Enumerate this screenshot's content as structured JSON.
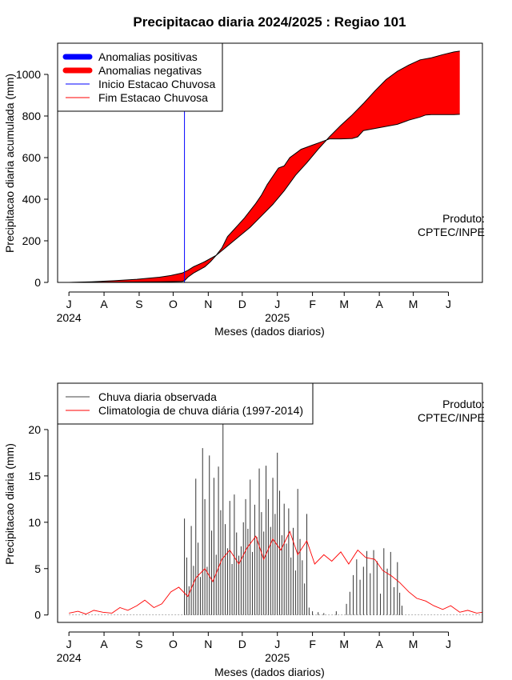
{
  "title": "Precipitacao diaria 2024/2025 : Regiao 101",
  "month_ticks": [
    "J",
    "A",
    "S",
    "O",
    "N",
    "D",
    "J",
    "F",
    "M",
    "A",
    "M",
    "J"
  ],
  "year_labels": [
    "2024",
    "2025"
  ],
  "chart_data": [
    {
      "type": "area",
      "xlabel": "Meses (dados diarios)",
      "ylabel": "Precipitacao diaria acumulada (mm)",
      "ylim": [
        0,
        1150
      ],
      "yticks": [
        0,
        200,
        400,
        600,
        800,
        1000
      ],
      "x_unit": "days since 1 Jul 2024",
      "xlim": [
        -10,
        365
      ],
      "legend_position": "top-left",
      "legend": [
        {
          "label": "Anomalias positivas",
          "color": "#0000ff",
          "style": "thick"
        },
        {
          "label": "Anomalias negativas",
          "color": "#ff0000",
          "style": "thick"
        },
        {
          "label": "Inicio Estacao Chuvosa",
          "color": "#0000ff",
          "style": "thin"
        },
        {
          "label": "Fim Estacao Chuvosa",
          "color": "#ff0000",
          "style": "thin"
        }
      ],
      "annotation": [
        "Produto:",
        "CPTEC/INPE"
      ],
      "onset_day": 102,
      "series": [
        {
          "name": "Climatologia acumulada",
          "x": [
            0,
            20,
            40,
            60,
            80,
            90,
            100,
            105,
            110,
            120,
            130,
            140,
            150,
            160,
            170,
            180,
            190,
            200,
            210,
            220,
            230,
            240,
            250,
            260,
            270,
            280,
            290,
            300,
            310,
            320,
            330,
            340,
            345
          ],
          "y": [
            0,
            3,
            8,
            15,
            25,
            33,
            45,
            58,
            75,
            100,
            130,
            175,
            220,
            265,
            320,
            375,
            440,
            515,
            575,
            640,
            700,
            755,
            805,
            860,
            920,
            975,
            1015,
            1045,
            1070,
            1080,
            1095,
            1108,
            1112
          ]
        },
        {
          "name": "Observado acumulado",
          "x": [
            0,
            20,
            40,
            60,
            80,
            90,
            100,
            102,
            105,
            110,
            115,
            120,
            125,
            130,
            135,
            140,
            145,
            150,
            155,
            160,
            165,
            170,
            175,
            180,
            185,
            190,
            195,
            200,
            205,
            210,
            215,
            220,
            225,
            230,
            240,
            250,
            255,
            260,
            270,
            280,
            290,
            300,
            310,
            315,
            320,
            330,
            340,
            345
          ],
          "y": [
            0,
            0.5,
            1,
            2,
            3,
            4,
            5,
            8,
            25,
            45,
            60,
            75,
            100,
            130,
            165,
            220,
            250,
            280,
            310,
            345,
            380,
            420,
            470,
            510,
            550,
            560,
            600,
            620,
            640,
            650,
            660,
            670,
            680,
            690,
            690,
            692,
            700,
            730,
            740,
            750,
            760,
            780,
            795,
            805,
            807,
            807,
            807,
            808
          ]
        }
      ]
    },
    {
      "type": "bar",
      "xlabel": "Meses (dados diarios)",
      "ylabel": "Precipitacao diaria (mm)",
      "ylim": [
        -0.8,
        25
      ],
      "yticks": [
        0,
        5,
        10,
        15,
        20
      ],
      "x_unit": "days since 1 Jul 2024",
      "xlim": [
        -10,
        365
      ],
      "legend_position": "top-left",
      "legend": [
        {
          "label": "Chuva diaria observada",
          "color": "#444444",
          "style": "thin"
        },
        {
          "label": "Climatologia de chuva diária (1997-2014)",
          "color": "#ff0000",
          "style": "thin"
        }
      ],
      "annotation": [
        "Produto:",
        "CPTEC/INPE"
      ],
      "bars": [
        [
          102,
          10.4
        ],
        [
          104,
          6.2
        ],
        [
          106,
          3.1
        ],
        [
          108,
          9.6
        ],
        [
          110,
          5.3
        ],
        [
          112,
          14.7
        ],
        [
          114,
          7.8
        ],
        [
          116,
          4.1
        ],
        [
          118,
          18.0
        ],
        [
          120,
          12.5
        ],
        [
          122,
          5.2
        ],
        [
          124,
          17.2
        ],
        [
          126,
          9.1
        ],
        [
          128,
          14.8
        ],
        [
          130,
          6.5
        ],
        [
          132,
          16.0
        ],
        [
          134,
          11.3
        ],
        [
          136,
          20.8
        ],
        [
          138,
          9.8
        ],
        [
          140,
          7.2
        ],
        [
          142,
          12.3
        ],
        [
          144,
          5.5
        ],
        [
          146,
          13.0
        ],
        [
          148,
          8.9
        ],
        [
          150,
          6.4
        ],
        [
          152,
          7.4
        ],
        [
          154,
          10.0
        ],
        [
          156,
          12.5
        ],
        [
          158,
          9.3
        ],
        [
          160,
          14.6
        ],
        [
          162,
          6.8
        ],
        [
          164,
          11.9
        ],
        [
          166,
          8.4
        ],
        [
          168,
          15.8
        ],
        [
          170,
          11.1
        ],
        [
          172,
          9.0
        ],
        [
          174,
          16.1
        ],
        [
          176,
          12.5
        ],
        [
          178,
          9.5
        ],
        [
          180,
          14.8
        ],
        [
          182,
          10.9
        ],
        [
          184,
          17.5
        ],
        [
          186,
          13.4
        ],
        [
          188,
          8.6
        ],
        [
          190,
          12.0
        ],
        [
          192,
          7.7
        ],
        [
          194,
          11.5
        ],
        [
          196,
          6.2
        ],
        [
          198,
          9.4
        ],
        [
          200,
          4.8
        ],
        [
          202,
          13.6
        ],
        [
          204,
          8.2
        ],
        [
          206,
          5.9
        ],
        [
          208,
          3.4
        ],
        [
          210,
          10.9
        ],
        [
          212,
          0.8
        ],
        [
          215,
          0.4
        ],
        [
          220,
          0.3
        ],
        [
          225,
          0.2
        ],
        [
          236,
          0.4
        ],
        [
          245,
          1.2
        ],
        [
          248,
          2.5
        ],
        [
          251,
          4.3
        ],
        [
          254,
          6.0
        ],
        [
          257,
          3.8
        ],
        [
          260,
          5.2
        ],
        [
          263,
          6.9
        ],
        [
          266,
          4.5
        ],
        [
          269,
          7.0
        ],
        [
          272,
          5.8
        ],
        [
          275,
          2.3
        ],
        [
          278,
          7.2
        ],
        [
          281,
          5.0
        ],
        [
          284,
          6.8
        ],
        [
          287,
          3.0
        ],
        [
          290,
          5.7
        ],
        [
          292,
          2.4
        ],
        [
          294,
          1.0
        ]
      ],
      "climatology": {
        "x": [
          0,
          8,
          15,
          22,
          30,
          38,
          45,
          52,
          60,
          67,
          75,
          82,
          90,
          97,
          105,
          112,
          120,
          127,
          135,
          142,
          150,
          157,
          165,
          172,
          180,
          187,
          195,
          202,
          210,
          217,
          225,
          232,
          240,
          247,
          255,
          262,
          270,
          277,
          285,
          292,
          300,
          307,
          315,
          322,
          330,
          337,
          345,
          352,
          360,
          365
        ],
        "y": [
          0.2,
          0.4,
          0.1,
          0.5,
          0.3,
          0.2,
          0.8,
          0.5,
          1.0,
          1.6,
          0.8,
          1.2,
          2.5,
          3.0,
          2.0,
          4.0,
          5.0,
          3.6,
          6.0,
          7.0,
          5.5,
          7.2,
          8.5,
          6.0,
          8.2,
          7.0,
          9.0,
          6.5,
          8.0,
          5.5,
          6.5,
          5.8,
          6.8,
          5.5,
          7.0,
          6.2,
          6.0,
          4.8,
          4.2,
          3.5,
          2.5,
          1.8,
          1.5,
          1.0,
          0.6,
          1.0,
          0.3,
          0.5,
          0.2,
          0.3
        ]
      }
    }
  ]
}
